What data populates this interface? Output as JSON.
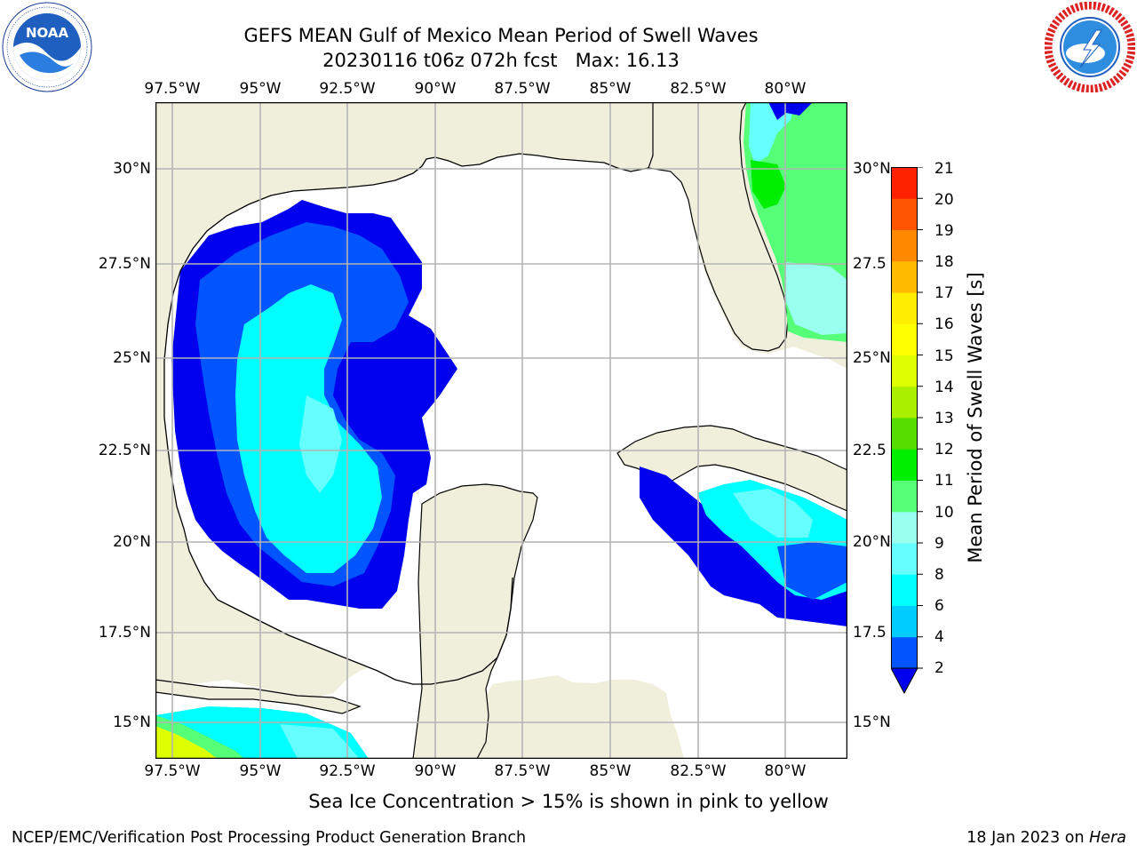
{
  "title": {
    "line1": "GEFS MEAN Gulf of Mexico Mean Period of Swell Waves",
    "line2": "20230116 t06z 072h fcst   Max: 16.13"
  },
  "logos": {
    "left": {
      "name": "NOAA",
      "ring_text": "NATIONAL OCEANIC AND ATMOSPHERIC ADMINISTRATION",
      "bottom_text": "U.S. DEPARTMENT OF COMMERCE"
    },
    "right": {
      "ring_text": "NATIONAL WEATHER SERVICE"
    }
  },
  "axes": {
    "lon_labels": [
      "97.5°W",
      "95°W",
      "92.5°W",
      "90°W",
      "87.5°W",
      "85°W",
      "82.5°W",
      "80°W"
    ],
    "lat_labels_left": [
      "30°N",
      "27.5°N",
      "25°N",
      "22.5°N",
      "20°N",
      "17.5°N",
      "15°N"
    ],
    "lat_labels_right": [
      "30°N",
      "27.5",
      "25°N",
      "22.5",
      "20°N",
      "17.5",
      "15°N"
    ]
  },
  "colorbar": {
    "label": "Mean Period of Swell Waves [s]",
    "ticks": [
      "2",
      "4",
      "6",
      "8",
      "9",
      "10",
      "11",
      "12",
      "13",
      "14",
      "15",
      "16",
      "17",
      "18",
      "19",
      "20",
      "21"
    ],
    "colors": [
      "#0055ff",
      "#00ccff",
      "#00ffff",
      "#66ffff",
      "#99ffee",
      "#55ff77",
      "#00ee00",
      "#55dd00",
      "#aaee00",
      "#ddff00",
      "#ffff00",
      "#ffee00",
      "#ffbb00",
      "#ff8800",
      "#ff5500",
      "#ff2200",
      "#ff0000"
    ],
    "under_color": "#0000ee"
  },
  "colors": {
    "land": "#efefdc",
    "ocean_masked": "#ffffff",
    "grid": "#b4b4b4"
  },
  "note": "Sea Ice Concentration > 15% is shown in pink to yellow",
  "footer": {
    "left": "NCEP/EMC/Verification Post Processing Product Generation Branch",
    "right_date": "18 Jan 2023 on ",
    "right_host": "Hera"
  }
}
